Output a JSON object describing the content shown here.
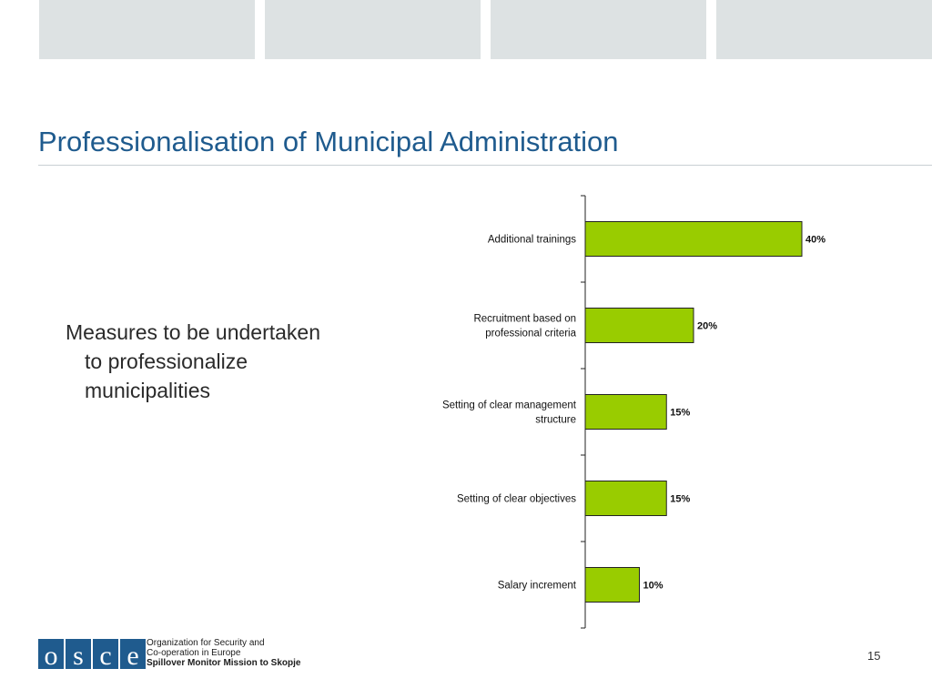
{
  "slide": {
    "title": "Professionalisation of Municipal Administration",
    "bullet": "Measures to be undertaken to professionalize municipalities",
    "page_number": "15"
  },
  "footer": {
    "logo_text": "OSCE",
    "org_line1": "Organization for Security and",
    "org_line2": "Co-operation in Europe",
    "org_line3": "Spillover Monitor Mission to Skopje"
  },
  "colors": {
    "title": "#1f5b8e",
    "bar_fill": "#99cc00",
    "logo": "#1f5b8e",
    "header_blocks": "#dde2e3"
  },
  "chart_data": {
    "type": "bar",
    "orientation": "horizontal",
    "categories": [
      "Additional trainings",
      "Recruitment based on professional criteria",
      "Setting of clear management structure",
      "Setting of clear objectives",
      "Salary increment"
    ],
    "values": [
      40,
      20,
      15,
      15,
      10
    ],
    "value_labels": [
      "40%",
      "20%",
      "15%",
      "15%",
      "10%"
    ],
    "xlim": [
      0,
      40
    ],
    "grid": false,
    "legend": "none"
  }
}
